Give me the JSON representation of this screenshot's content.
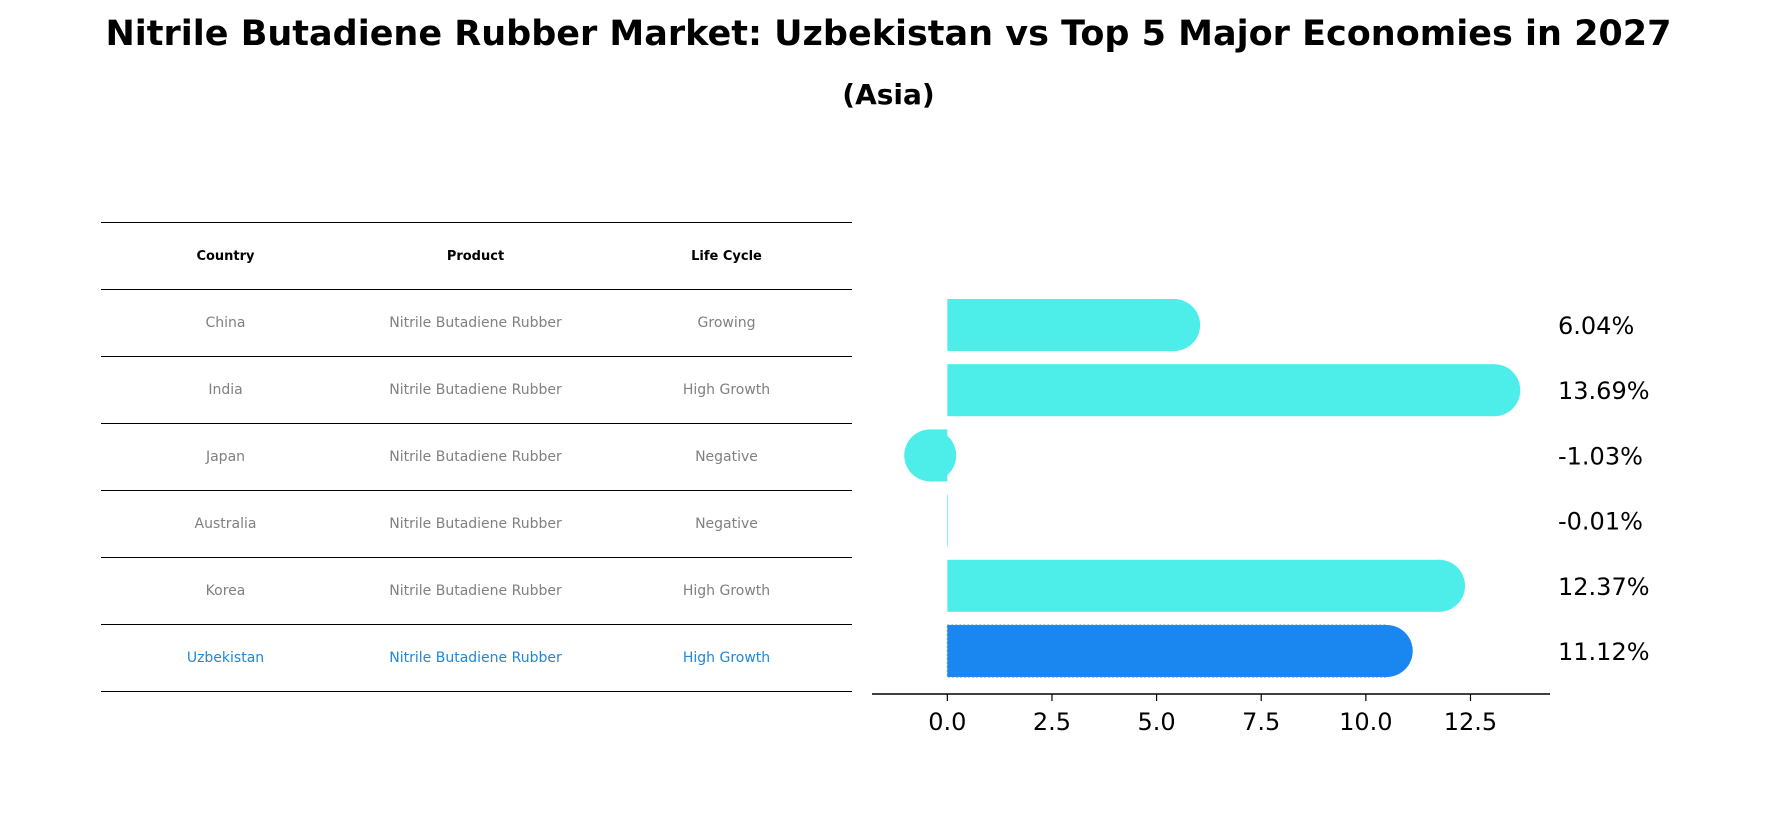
{
  "title": "Nitrile Butadiene Rubber Market: Uzbekistan vs Top 5 Major Economies in 2027",
  "subtitle": "(Asia)",
  "table": {
    "headers": [
      "Country",
      "Product",
      "Life Cycle"
    ],
    "rows": [
      {
        "country": "China",
        "product": "Nitrile Butadiene Rubber",
        "life_cycle": "Growing"
      },
      {
        "country": "India",
        "product": "Nitrile Butadiene Rubber",
        "life_cycle": "High Growth"
      },
      {
        "country": "Japan",
        "product": "Nitrile Butadiene Rubber",
        "life_cycle": "Negative"
      },
      {
        "country": "Australia",
        "product": "Nitrile Butadiene Rubber",
        "life_cycle": "Negative"
      },
      {
        "country": "Korea",
        "product": "Nitrile Butadiene Rubber",
        "life_cycle": "High Growth"
      },
      {
        "country": "Uzbekistan",
        "product": "Nitrile Butadiene Rubber",
        "life_cycle": "High Growth"
      }
    ]
  },
  "colors": {
    "bar": "#4deeea",
    "highlight_bar": "#1a86f0",
    "highlight_text": "#1f87d9",
    "muted_text": "#808080"
  },
  "chart_data": {
    "type": "bar",
    "orientation": "horizontal",
    "categories": [
      "China",
      "India",
      "Japan",
      "Australia",
      "Korea",
      "Uzbekistan"
    ],
    "values": [
      6.04,
      13.69,
      -1.03,
      -0.01,
      12.37,
      11.12
    ],
    "value_labels": [
      "6.04%",
      "13.69%",
      "-1.03%",
      "-0.01%",
      "12.37%",
      "11.12%"
    ],
    "highlight_category": "Uzbekistan",
    "xlim": [
      -1.8,
      14.4
    ],
    "xticks": [
      0.0,
      2.5,
      5.0,
      7.5,
      10.0,
      12.5
    ],
    "xtick_labels": [
      "0.0",
      "2.5",
      "5.0",
      "7.5",
      "10.0",
      "12.5"
    ],
    "xlabel": "",
    "ylabel": ""
  }
}
